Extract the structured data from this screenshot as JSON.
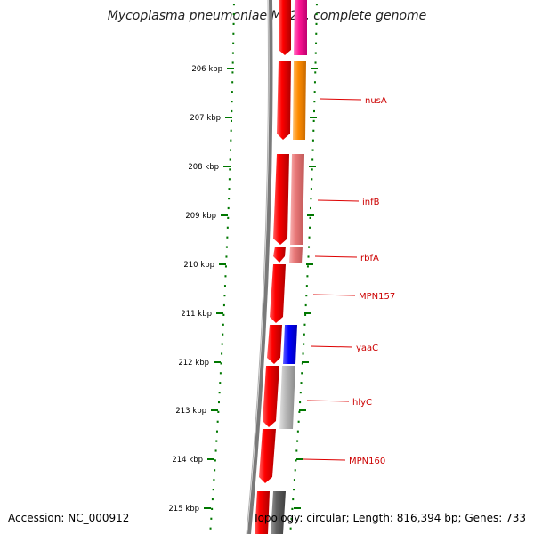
{
  "title": "Mycoplasma pneumoniae M129, complete genome",
  "accession": "Accession: NC_000912",
  "topology": "Topology: circular; Length: 816,394 bp; Genes: 733",
  "ticks": [
    "206 kbp",
    "207 kbp",
    "208 kbp",
    "209 kbp",
    "210 kbp",
    "211 kbp",
    "212 kbp",
    "213 kbp",
    "214 kbp",
    "215 kbp"
  ],
  "gene_labels": [
    "nusA",
    "infB",
    "rbfA",
    "MPN157",
    "yaaC",
    "hlyC",
    "MPN160"
  ],
  "colors": {
    "cds_strand": "#ee0000",
    "tick": "#007700",
    "backbone": "#808080",
    "label": "#cc0000",
    "gene_pink": "#ff1493",
    "gene_orange": "#ff8c00",
    "gene_salmon": "#e87878",
    "gene_blue": "#0000ff",
    "gene_lightgray": "#b0b0b0",
    "gene_darkgray": "#606060"
  }
}
